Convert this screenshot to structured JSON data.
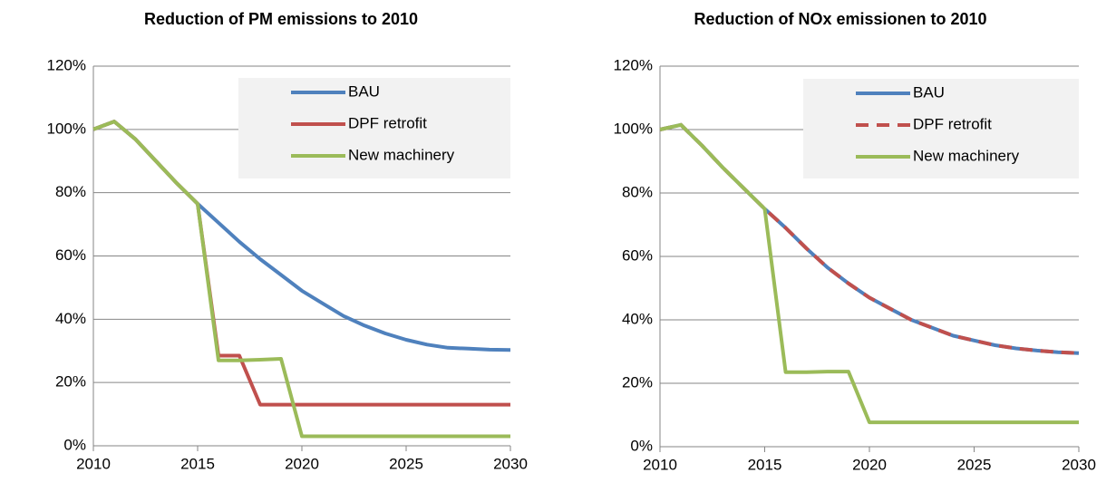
{
  "chart_data": [
    {
      "type": "line",
      "title": "Reduction of PM emissions to 2010",
      "x": [
        2010,
        2011,
        2012,
        2013,
        2014,
        2015,
        2016,
        2017,
        2018,
        2019,
        2020,
        2021,
        2022,
        2023,
        2024,
        2025,
        2026,
        2027,
        2028,
        2029,
        2030
      ],
      "series": [
        {
          "name": "BAU",
          "color": "#4f81bd",
          "values": [
            100,
            102.5,
            97,
            90,
            83,
            76.5,
            70.5,
            64.5,
            59,
            54,
            49,
            45,
            41,
            38,
            35.5,
            33.5,
            32,
            31,
            30.7,
            30.4,
            30.3
          ]
        },
        {
          "name": "DPF retrofit",
          "color": "#c0504d",
          "values": [
            100,
            102.5,
            97,
            90,
            83,
            76.5,
            28.5,
            28.5,
            13,
            13,
            13,
            13,
            13,
            13,
            13,
            13,
            13,
            13,
            13,
            13,
            13
          ]
        },
        {
          "name": "New machinery",
          "color": "#9bbb59",
          "values": [
            100,
            102.5,
            97,
            90,
            83,
            76.5,
            27,
            27,
            27.2,
            27.5,
            3,
            3,
            3,
            3,
            3,
            3,
            3,
            3,
            3,
            3,
            3
          ]
        }
      ],
      "xlim": [
        2010,
        2030
      ],
      "xticks": [
        2010,
        2015,
        2020,
        2025,
        2030
      ],
      "ylim": [
        0,
        120
      ],
      "yticks": [
        {
          "value": 0,
          "label": "0%"
        },
        {
          "value": 20,
          "label": "20%"
        },
        {
          "value": 40,
          "label": "40%"
        },
        {
          "value": 60,
          "label": "60%"
        },
        {
          "value": 80,
          "label": "80%"
        },
        {
          "value": 100,
          "label": "100%"
        },
        {
          "value": 120,
          "label": "120%"
        }
      ],
      "grid": true,
      "legend": "top-right"
    },
    {
      "type": "line",
      "title": "Reduction of NOx emissionen to 2010",
      "x": [
        2010,
        2011,
        2012,
        2013,
        2014,
        2015,
        2016,
        2017,
        2018,
        2019,
        2020,
        2021,
        2022,
        2023,
        2024,
        2025,
        2026,
        2027,
        2028,
        2029,
        2030
      ],
      "series": [
        {
          "name": "BAU",
          "color": "#4f81bd",
          "values": [
            100,
            101.5,
            95,
            88,
            81.5,
            75,
            69,
            62.5,
            56.5,
            51.5,
            47,
            43.5,
            40,
            37.5,
            35,
            33.5,
            32,
            31,
            30.3,
            29.8,
            29.5
          ]
        },
        {
          "name": "DPF retrofit",
          "color": "#c0504d",
          "dash": true,
          "values": [
            100,
            101.5,
            95,
            88,
            81.5,
            75,
            69,
            62.5,
            56.5,
            51.5,
            47,
            43.5,
            40,
            37.5,
            35,
            33.5,
            32,
            31,
            30.3,
            29.8,
            29.5
          ]
        },
        {
          "name": "New machinery",
          "color": "#9bbb59",
          "values": [
            100,
            101.5,
            95,
            88,
            81.5,
            75,
            23.5,
            23.5,
            23.7,
            23.7,
            7.7,
            7.7,
            7.7,
            7.7,
            7.7,
            7.7,
            7.7,
            7.7,
            7.7,
            7.7,
            7.7
          ]
        }
      ],
      "xlim": [
        2010,
        2030
      ],
      "xticks": [
        2010,
        2015,
        2020,
        2025,
        2030
      ],
      "ylim": [
        0,
        120
      ],
      "yticks": [
        {
          "value": 0,
          "label": "0%"
        },
        {
          "value": 20,
          "label": "20%"
        },
        {
          "value": 40,
          "label": "40%"
        },
        {
          "value": 60,
          "label": "60%"
        },
        {
          "value": 80,
          "label": "80%"
        },
        {
          "value": 100,
          "label": "100%"
        },
        {
          "value": 120,
          "label": "120%"
        }
      ],
      "grid": true,
      "legend": "top-right"
    }
  ]
}
